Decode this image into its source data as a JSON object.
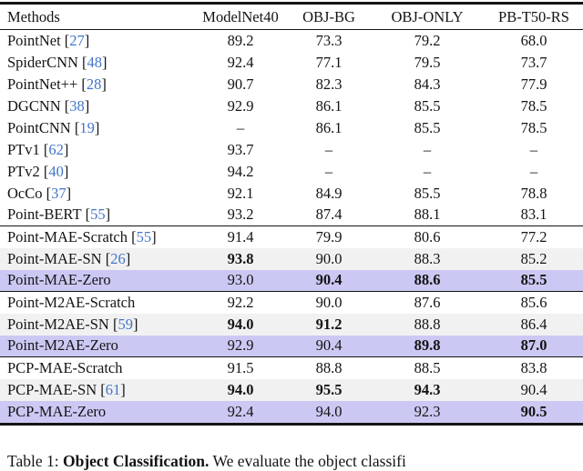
{
  "colors": {
    "highlight_purple": "#cbc9f3",
    "highlight_gray": "#f1f1f1",
    "citation_blue": "#4275c9",
    "rule_black": "#141414"
  },
  "table": {
    "columns": [
      "Methods",
      "ModelNet40",
      "OBJ-BG",
      "OBJ-ONLY",
      "PB-T50-RS"
    ],
    "groups": [
      {
        "name": "baselines",
        "rows": [
          {
            "method": "PointNet",
            "ref": "27",
            "values": [
              "89.2",
              "73.3",
              "79.2",
              "68.0"
            ],
            "bold": [],
            "bg": "plain"
          },
          {
            "method": "SpiderCNN",
            "ref": "48",
            "values": [
              "92.4",
              "77.1",
              "79.5",
              "73.7"
            ],
            "bold": [],
            "bg": "plain"
          },
          {
            "method": "PointNet++",
            "ref": "28",
            "values": [
              "90.7",
              "82.3",
              "84.3",
              "77.9"
            ],
            "bold": [],
            "bg": "plain"
          },
          {
            "method": "DGCNN",
            "ref": "38",
            "values": [
              "92.9",
              "86.1",
              "85.5",
              "78.5"
            ],
            "bold": [],
            "bg": "plain"
          },
          {
            "method": "PointCNN",
            "ref": "19",
            "values": [
              "–",
              "86.1",
              "85.5",
              "78.5"
            ],
            "bold": [],
            "bg": "plain"
          },
          {
            "method": "PTv1",
            "ref": "62",
            "values": [
              "93.7",
              "–",
              "–",
              "–"
            ],
            "bold": [],
            "bg": "plain"
          },
          {
            "method": "PTv2",
            "ref": "40",
            "values": [
              "94.2",
              "–",
              "–",
              "–"
            ],
            "bold": [],
            "bg": "plain"
          },
          {
            "method": "OcCo",
            "ref": "37",
            "values": [
              "92.1",
              "84.9",
              "85.5",
              "78.8"
            ],
            "bold": [],
            "bg": "plain"
          },
          {
            "method": "Point-BERT",
            "ref": "55",
            "values": [
              "93.2",
              "87.4",
              "88.1",
              "83.1"
            ],
            "bold": [],
            "bg": "plain"
          }
        ]
      },
      {
        "name": "point-mae",
        "rows": [
          {
            "method": "Point-MAE-Scratch",
            "ref": "55",
            "values": [
              "91.4",
              "79.9",
              "80.6",
              "77.2"
            ],
            "bold": [],
            "bg": "plain"
          },
          {
            "method": "Point-MAE-SN",
            "ref": "26",
            "values": [
              "93.8",
              "90.0",
              "88.3",
              "85.2"
            ],
            "bold": [
              0
            ],
            "bg": "gray"
          },
          {
            "method": "Point-MAE-Zero",
            "ref": null,
            "values": [
              "93.0",
              "90.4",
              "88.6",
              "85.5"
            ],
            "bold": [
              1,
              2,
              3
            ],
            "bg": "purple"
          }
        ]
      },
      {
        "name": "point-m2ae",
        "rows": [
          {
            "method": "Point-M2AE-Scratch",
            "ref": null,
            "values": [
              "92.2",
              "90.0",
              "87.6",
              "85.6"
            ],
            "bold": [],
            "bg": "plain"
          },
          {
            "method": "Point-M2AE-SN",
            "ref": "59",
            "values": [
              "94.0",
              "91.2",
              "88.8",
              "86.4"
            ],
            "bold": [
              0,
              1
            ],
            "bg": "gray"
          },
          {
            "method": "Point-M2AE-Zero",
            "ref": null,
            "values": [
              "92.9",
              "90.4",
              "89.8",
              "87.0"
            ],
            "bold": [
              2,
              3
            ],
            "bg": "purple"
          }
        ]
      },
      {
        "name": "pcp-mae",
        "rows": [
          {
            "method": "PCP-MAE-Scratch",
            "ref": null,
            "values": [
              "91.5",
              "88.8",
              "88.5",
              "83.8"
            ],
            "bold": [],
            "bg": "plain"
          },
          {
            "method": "PCP-MAE-SN",
            "ref": "61",
            "values": [
              "94.0",
              "95.5",
              "94.3",
              "90.4"
            ],
            "bold": [
              0,
              1,
              2
            ],
            "bg": "gray"
          },
          {
            "method": "PCP-MAE-Zero",
            "ref": null,
            "values": [
              "92.4",
              "94.0",
              "92.3",
              "90.5"
            ],
            "bold": [
              3
            ],
            "bg": "purple"
          }
        ]
      }
    ]
  },
  "caption": {
    "label": "Table 1:",
    "title": "Object Classification.",
    "text": "We evaluate the object classifi"
  }
}
